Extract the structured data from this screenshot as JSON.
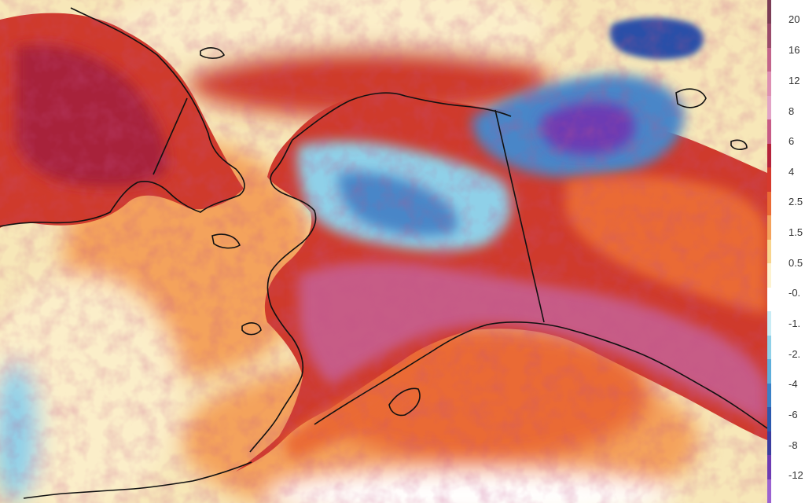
{
  "map": {
    "colors": {
      "ocean_base": "#f7e7b8",
      "deep_warm": "#a8203a",
      "hot": "#cf3a2c",
      "warm": "#ea6a35",
      "mild": "#f4a25c",
      "neutral": "#fbeec9",
      "near_zero": "#ffffff",
      "cool": "#8fd0e8",
      "cold": "#4a86c8",
      "very_cold": "#2b4fa8",
      "purple": "#6d3bb3",
      "pink": "#c75b86",
      "coast": "#111111"
    }
  },
  "legend": {
    "labels": [
      "20",
      "16",
      "12",
      "8",
      "6",
      "4",
      "2.5",
      "1.5",
      "0.5",
      "-0.",
      "-1.",
      "-2.",
      "-4",
      "-6",
      "-8",
      "-12"
    ],
    "colors": [
      "#7b3d56",
      "#9a4b6b",
      "#c2648b",
      "#dd8fb2",
      "#e2a3c6",
      "#c75b86",
      "#b5223a",
      "#d5392d",
      "#ea6a35",
      "#f4a25c",
      "#f8d48d",
      "#fdf2cf",
      "#ffffff",
      "#c9ecf5",
      "#8fd0e8",
      "#5eaedb",
      "#3a80c6",
      "#2b58ad",
      "#3a3c9e",
      "#6d3bb3",
      "#9b62d0"
    ]
  }
}
